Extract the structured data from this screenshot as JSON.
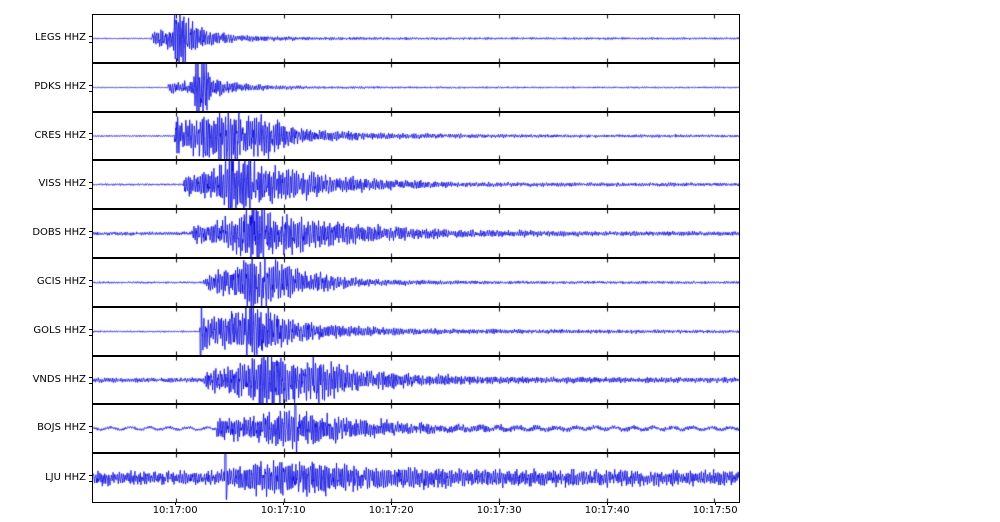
{
  "figure": {
    "background": "#ffffff",
    "trace_color": "#0000dd",
    "frame_color": "#000000",
    "text_color": "#000000"
  },
  "chart_data": {
    "type": "line",
    "subtype": "seismogram-multitrace",
    "title": "",
    "xlabel": "",
    "ylabel": "",
    "grid": false,
    "legend": null,
    "time_window": {
      "start": "10:16:52",
      "end": "10:17:52",
      "duration_s": 60
    },
    "x_ticks": [
      {
        "label": "10:17:00",
        "t": 7.7
      },
      {
        "label": "10:17:10",
        "t": 17.7
      },
      {
        "label": "10:17:20",
        "t": 27.7
      },
      {
        "label": "10:17:30",
        "t": 37.7
      },
      {
        "label": "10:17:40",
        "t": 47.7
      },
      {
        "label": "10:17:50",
        "t": 57.7
      }
    ],
    "stations": [
      {
        "name": "LEGS HHZ",
        "onset_s": 5.6,
        "seed": 3,
        "envelope": [
          [
            0,
            0.025
          ],
          [
            5.4,
            0.025
          ],
          [
            5.6,
            0.3
          ],
          [
            6.5,
            0.4
          ],
          [
            7.4,
            0.45
          ],
          [
            7.8,
            1.5
          ],
          [
            8.5,
            1.5
          ],
          [
            9.0,
            0.6
          ],
          [
            10,
            0.4
          ],
          [
            11.5,
            0.25
          ],
          [
            13,
            0.15
          ],
          [
            16,
            0.1
          ],
          [
            20,
            0.06
          ],
          [
            30,
            0.045
          ],
          [
            60,
            0.04
          ]
        ],
        "spikes": [],
        "lf": null
      },
      {
        "name": "PDKS HHZ",
        "onset_s": 7.0,
        "seed": 17,
        "envelope": [
          [
            0,
            0.02
          ],
          [
            6.9,
            0.02
          ],
          [
            7.1,
            0.22
          ],
          [
            9.3,
            0.28
          ],
          [
            9.7,
            1.5
          ],
          [
            10.4,
            1.5
          ],
          [
            10.9,
            0.5
          ],
          [
            12,
            0.3
          ],
          [
            13.5,
            0.18
          ],
          [
            16,
            0.1
          ],
          [
            20,
            0.05
          ],
          [
            28,
            0.035
          ],
          [
            60,
            0.03
          ]
        ],
        "spikes": [],
        "lf": null
      },
      {
        "name": "CRES HHZ",
        "onset_s": 7.7,
        "seed": 29,
        "envelope": [
          [
            0,
            0.03
          ],
          [
            7.5,
            0.03
          ],
          [
            7.7,
            0.75
          ],
          [
            9,
            0.7
          ],
          [
            10.5,
            0.85
          ],
          [
            11.5,
            1.15
          ],
          [
            13,
            1.1
          ],
          [
            14,
            0.8
          ],
          [
            15.5,
            1.0
          ],
          [
            16.5,
            0.8
          ],
          [
            17.5,
            0.45
          ],
          [
            19,
            0.3
          ],
          [
            21,
            0.25
          ],
          [
            24,
            0.18
          ],
          [
            27,
            0.13
          ],
          [
            31,
            0.1
          ],
          [
            38,
            0.07
          ],
          [
            45,
            0.06
          ],
          [
            60,
            0.05
          ]
        ],
        "spikes": [],
        "lf": null
      },
      {
        "name": "VISS HHZ",
        "onset_s": 8.6,
        "seed": 41,
        "envelope": [
          [
            0,
            0.035
          ],
          [
            8.3,
            0.035
          ],
          [
            8.6,
            0.45
          ],
          [
            10,
            0.5
          ],
          [
            11.5,
            0.6
          ],
          [
            12.8,
            1.2
          ],
          [
            14.5,
            1.1
          ],
          [
            15.5,
            0.7
          ],
          [
            17,
            0.75
          ],
          [
            18.5,
            0.6
          ],
          [
            20,
            0.5
          ],
          [
            22,
            0.35
          ],
          [
            24.5,
            0.28
          ],
          [
            27,
            0.2
          ],
          [
            30,
            0.15
          ],
          [
            34,
            0.1
          ],
          [
            40,
            0.08
          ],
          [
            60,
            0.06
          ]
        ],
        "spikes": [],
        "lf": null
      },
      {
        "name": "DOBS HHZ",
        "onset_s": 9.4,
        "seed": 53,
        "envelope": [
          [
            0,
            0.07
          ],
          [
            9.1,
            0.07
          ],
          [
            9.4,
            0.35
          ],
          [
            10.5,
            0.4
          ],
          [
            12,
            0.5
          ],
          [
            13.5,
            0.8
          ],
          [
            14.8,
            1.3
          ],
          [
            15.8,
            1.1
          ],
          [
            17,
            0.75
          ],
          [
            18.5,
            0.8
          ],
          [
            20,
            0.6
          ],
          [
            22,
            0.5
          ],
          [
            24,
            0.4
          ],
          [
            27,
            0.3
          ],
          [
            30,
            0.22
          ],
          [
            34,
            0.16
          ],
          [
            40,
            0.12
          ],
          [
            50,
            0.09
          ],
          [
            60,
            0.08
          ]
        ],
        "spikes": [],
        "lf": null
      },
      {
        "name": "GCIS HHZ",
        "onset_s": 10.5,
        "seed": 67,
        "envelope": [
          [
            0,
            0.035
          ],
          [
            10.2,
            0.035
          ],
          [
            10.5,
            0.3
          ],
          [
            12,
            0.45
          ],
          [
            13.5,
            0.6
          ],
          [
            14.8,
            1.3
          ],
          [
            16,
            1.2
          ],
          [
            17,
            0.8
          ],
          [
            18.5,
            0.6
          ],
          [
            20,
            0.45
          ],
          [
            22,
            0.3
          ],
          [
            24.5,
            0.2
          ],
          [
            27,
            0.13
          ],
          [
            31,
            0.09
          ],
          [
            38,
            0.06
          ],
          [
            60,
            0.05
          ]
        ],
        "spikes": [],
        "lf": null
      },
      {
        "name": "GOLS HHZ",
        "onset_s": 10.0,
        "seed": 79,
        "envelope": [
          [
            0,
            0.03
          ],
          [
            9.9,
            0.03
          ],
          [
            10.0,
            0.75
          ],
          [
            11,
            0.6
          ],
          [
            12,
            0.65
          ],
          [
            13.5,
            0.8
          ],
          [
            14.7,
            1.2
          ],
          [
            15.8,
            1.1
          ],
          [
            16.8,
            0.8
          ],
          [
            18,
            0.5
          ],
          [
            19.5,
            0.4
          ],
          [
            21.5,
            0.3
          ],
          [
            24,
            0.22
          ],
          [
            26,
            0.18
          ],
          [
            29,
            0.13
          ],
          [
            33,
            0.1
          ],
          [
            40,
            0.08
          ],
          [
            60,
            0.06
          ]
        ],
        "spikes": [
          {
            "t": 10.0,
            "amp": 1.9,
            "sign": -1
          }
        ],
        "lf": null
      },
      {
        "name": "VNDS HHZ",
        "onset_s": 10.6,
        "seed": 97,
        "envelope": [
          [
            0,
            0.09
          ],
          [
            10.3,
            0.09
          ],
          [
            10.6,
            0.55
          ],
          [
            12,
            0.5
          ],
          [
            13.5,
            0.6
          ],
          [
            15,
            0.8
          ],
          [
            16.2,
            1.3
          ],
          [
            17.5,
            1.0
          ],
          [
            19,
            0.9
          ],
          [
            20.5,
            1.0
          ],
          [
            22,
            0.7
          ],
          [
            24,
            0.5
          ],
          [
            26,
            0.4
          ],
          [
            29,
            0.3
          ],
          [
            32,
            0.22
          ],
          [
            36,
            0.17
          ],
          [
            42,
            0.13
          ],
          [
            50,
            0.11
          ],
          [
            60,
            0.1
          ]
        ],
        "spikes": [],
        "lf": null
      },
      {
        "name": "BOJS HHZ",
        "onset_s": 11.6,
        "seed": 113,
        "envelope": [
          [
            0,
            0.055
          ],
          [
            11.3,
            0.055
          ],
          [
            11.6,
            0.4
          ],
          [
            13,
            0.45
          ],
          [
            15,
            0.5
          ],
          [
            16.5,
            0.55
          ],
          [
            18,
            0.7
          ],
          [
            19,
            0.8
          ],
          [
            20,
            0.55
          ],
          [
            22,
            0.5
          ],
          [
            24,
            0.4
          ],
          [
            26.5,
            0.32
          ],
          [
            29,
            0.25
          ],
          [
            32,
            0.18
          ],
          [
            36,
            0.13
          ],
          [
            42,
            0.1
          ],
          [
            50,
            0.08
          ],
          [
            60,
            0.07
          ]
        ],
        "spikes": [
          {
            "t": 18.8,
            "amp": 1.8,
            "sign": 1
          }
        ],
        "lf": [
          0.05,
          1.8
        ]
      },
      {
        "name": "LJU HHZ",
        "onset_s": 12.3,
        "seed": 131,
        "envelope": [
          [
            0,
            0.26
          ],
          [
            11.9,
            0.26
          ],
          [
            12.3,
            0.45
          ],
          [
            14,
            0.5
          ],
          [
            16,
            0.6
          ],
          [
            17.5,
            0.7
          ],
          [
            19,
            0.6
          ],
          [
            21,
            0.65
          ],
          [
            23,
            0.55
          ],
          [
            25,
            0.5
          ],
          [
            27,
            0.45
          ],
          [
            30,
            0.4
          ],
          [
            33,
            0.35
          ],
          [
            38,
            0.32
          ],
          [
            45,
            0.3
          ],
          [
            60,
            0.28
          ]
        ],
        "spikes": [
          {
            "t": 12.3,
            "amp": 2.2,
            "sign": 1
          }
        ],
        "lf": null
      }
    ]
  }
}
